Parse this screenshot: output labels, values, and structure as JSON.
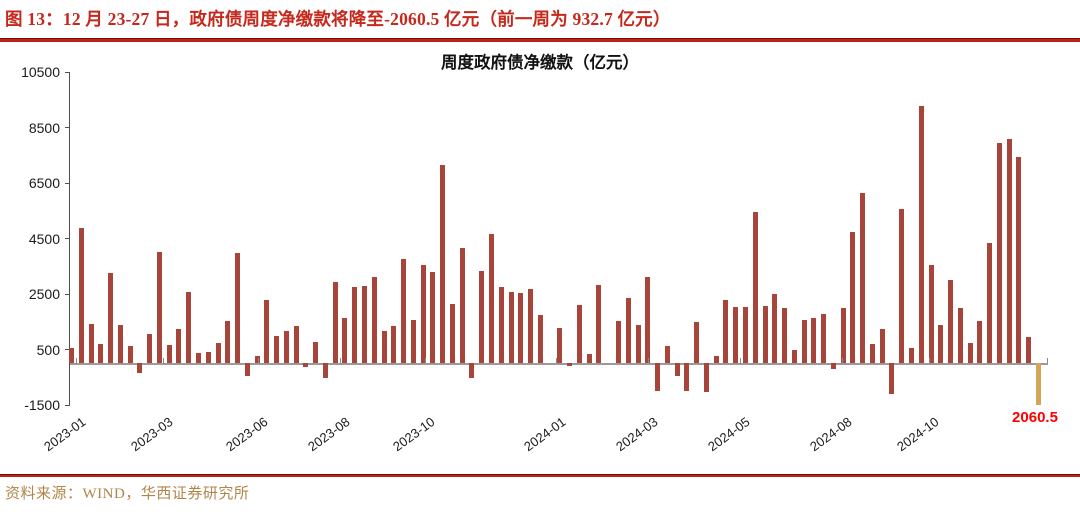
{
  "header": {
    "caption": "图 13：12 月 23-27 日，政府债周度净缴款将降至-2060.5 亿元（前一周为 932.7 亿元）"
  },
  "footer": {
    "source": "资料来源：WIND，华西证券研究所"
  },
  "colors": {
    "caption_red": "#C5281C",
    "rule_red": "#C02018",
    "bar": "#A8453A",
    "bar_highlight": "#D3A558",
    "annotation_red": "#FF0000",
    "source_gold": "#B1854A",
    "axis_line": "#4D4D4D",
    "zero_line": "#9A9A9A"
  },
  "chart_data": {
    "type": "bar",
    "title": "周度政府债净缴款（亿元）",
    "xlabel": "",
    "ylabel": "",
    "unit": "亿元",
    "grid": false,
    "legend": "none",
    "ylim": [
      -1500,
      10500
    ],
    "yticks": [
      10500,
      8500,
      6500,
      4500,
      2500,
      500,
      -1500
    ],
    "x_tick_labels": [
      {
        "label": "2023-01",
        "pos": 0.006
      },
      {
        "label": "2023-03",
        "pos": 0.095
      },
      {
        "label": "2023-06",
        "pos": 0.192
      },
      {
        "label": "2023-08",
        "pos": 0.276
      },
      {
        "label": "2023-10",
        "pos": 0.363
      },
      {
        "label": "2024-01",
        "pos": 0.497
      },
      {
        "label": "2024-03",
        "pos": 0.591
      },
      {
        "label": "2024-05",
        "pos": 0.685
      },
      {
        "label": "2024-08",
        "pos": 0.789
      },
      {
        "label": "2024-10",
        "pos": 0.878
      }
    ],
    "series_name": "周度政府债净缴款",
    "values": [
      550,
      4880,
      1410,
      690,
      3250,
      1370,
      630,
      -360,
      1070,
      4000,
      650,
      1250,
      2590,
      360,
      410,
      745,
      1530,
      3960,
      -460,
      265,
      2290,
      990,
      1170,
      1330,
      -130,
      770,
      -520,
      2920,
      1630,
      2760,
      2800,
      3100,
      1170,
      1330,
      3770,
      1570,
      3560,
      3280,
      7150,
      2150,
      4160,
      -520,
      3340,
      4670,
      2770,
      2590,
      2530,
      2670,
      1760,
      0,
      1280,
      -100,
      2120,
      340,
      2820,
      0,
      1520,
      2340,
      1370,
      3110,
      -1010,
      615,
      -470,
      -1000,
      1500,
      -1040,
      270,
      2290,
      2040,
      2040,
      5470,
      2070,
      2490,
      1990,
      470,
      1570,
      1650,
      1770,
      -220,
      2010,
      4750,
      6130,
      690,
      1250,
      -1120,
      5570,
      570,
      9270,
      3550,
      1390,
      3020,
      2010,
      750,
      1530,
      4340,
      7930,
      8070,
      7440,
      932.7,
      -2060.5
    ],
    "highlight_index": 99,
    "highlight_value": -2060.5,
    "previous_week_value": 932.7,
    "annotation": {
      "text": "2060.5",
      "color": "#FF0000"
    }
  }
}
